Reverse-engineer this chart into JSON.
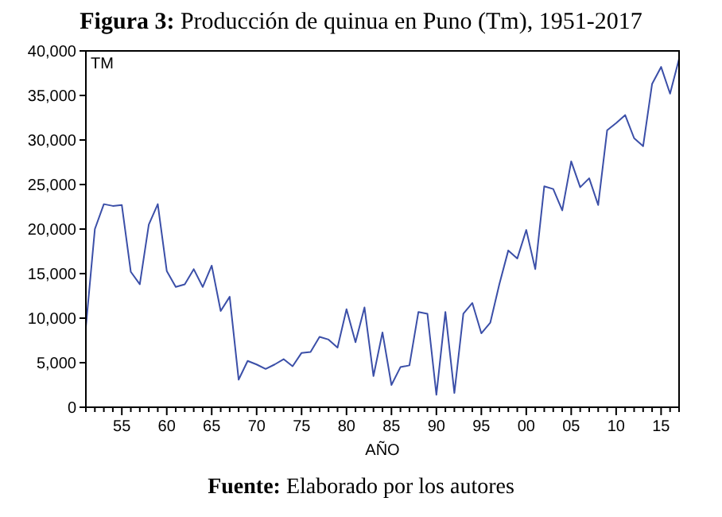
{
  "chart_data": {
    "type": "line",
    "title": "Figura 3: Producción de quinua en Puno (Tm), 1951-2017",
    "xlabel": "AÑO",
    "ylabel": "TM",
    "annotations": [
      "Fuente: Elaborado por los autores"
    ],
    "x": [
      1951,
      1952,
      1953,
      1954,
      1955,
      1956,
      1957,
      1958,
      1959,
      1960,
      1961,
      1962,
      1963,
      1964,
      1965,
      1966,
      1967,
      1968,
      1969,
      1970,
      1971,
      1972,
      1973,
      1974,
      1975,
      1976,
      1977,
      1978,
      1979,
      1980,
      1981,
      1982,
      1983,
      1984,
      1985,
      1986,
      1987,
      1988,
      1989,
      1990,
      1991,
      1992,
      1993,
      1994,
      1995,
      1996,
      1997,
      1998,
      1999,
      2000,
      2001,
      2002,
      2003,
      2004,
      2005,
      2006,
      2007,
      2008,
      2009,
      2010,
      2011,
      2012,
      2013,
      2014,
      2015,
      2016,
      2017
    ],
    "series": [
      {
        "color": "#3b4fa8",
        "values": [
          9000,
          20000,
          22800,
          22600,
          22700,
          15200,
          13800,
          20500,
          22800,
          15300,
          13500,
          13800,
          15500,
          13500,
          15900,
          10800,
          12400,
          3100,
          5200,
          4800,
          4300,
          4800,
          5400,
          4600,
          6100,
          6200,
          7900,
          7600,
          6700,
          11000,
          7300,
          11200,
          3500,
          8400,
          2500,
          4500,
          4700,
          10700,
          10500,
          1400,
          10700,
          1600,
          10500,
          11700,
          8300,
          9500,
          13800,
          17600,
          16700,
          19900,
          15500,
          24800,
          24500,
          22100,
          27600,
          24700,
          25700,
          22700,
          31100,
          31900,
          32800,
          30200,
          29300,
          36300,
          38200,
          35200,
          39100
        ]
      }
    ],
    "xlim": [
      1951,
      2017
    ],
    "ylim": [
      0,
      40000
    ],
    "xticks": [
      {
        "value": 1951,
        "label": null
      },
      {
        "value": 1952,
        "label": null
      },
      {
        "value": 1953,
        "label": null
      },
      {
        "value": 1954,
        "label": null
      },
      {
        "value": 1955,
        "label": "55"
      },
      {
        "value": 1956,
        "label": null
      },
      {
        "value": 1957,
        "label": null
      },
      {
        "value": 1958,
        "label": null
      },
      {
        "value": 1959,
        "label": null
      },
      {
        "value": 1960,
        "label": "60"
      },
      {
        "value": 1961,
        "label": null
      },
      {
        "value": 1962,
        "label": null
      },
      {
        "value": 1963,
        "label": null
      },
      {
        "value": 1964,
        "label": null
      },
      {
        "value": 1965,
        "label": "65"
      },
      {
        "value": 1966,
        "label": null
      },
      {
        "value": 1967,
        "label": null
      },
      {
        "value": 1968,
        "label": null
      },
      {
        "value": 1969,
        "label": null
      },
      {
        "value": 1970,
        "label": "70"
      },
      {
        "value": 1971,
        "label": null
      },
      {
        "value": 1972,
        "label": null
      },
      {
        "value": 1973,
        "label": null
      },
      {
        "value": 1974,
        "label": null
      },
      {
        "value": 1975,
        "label": "75"
      },
      {
        "value": 1976,
        "label": null
      },
      {
        "value": 1977,
        "label": null
      },
      {
        "value": 1978,
        "label": null
      },
      {
        "value": 1979,
        "label": null
      },
      {
        "value": 1980,
        "label": "80"
      },
      {
        "value": 1981,
        "label": null
      },
      {
        "value": 1982,
        "label": null
      },
      {
        "value": 1983,
        "label": null
      },
      {
        "value": 1984,
        "label": null
      },
      {
        "value": 1985,
        "label": "85"
      },
      {
        "value": 1986,
        "label": null
      },
      {
        "value": 1987,
        "label": null
      },
      {
        "value": 1988,
        "label": null
      },
      {
        "value": 1989,
        "label": null
      },
      {
        "value": 1990,
        "label": "90"
      },
      {
        "value": 1991,
        "label": null
      },
      {
        "value": 1992,
        "label": null
      },
      {
        "value": 1993,
        "label": null
      },
      {
        "value": 1994,
        "label": null
      },
      {
        "value": 1995,
        "label": "95"
      },
      {
        "value": 1996,
        "label": null
      },
      {
        "value": 1997,
        "label": null
      },
      {
        "value": 1998,
        "label": null
      },
      {
        "value": 1999,
        "label": null
      },
      {
        "value": 2000,
        "label": "00"
      },
      {
        "value": 2001,
        "label": null
      },
      {
        "value": 2002,
        "label": null
      },
      {
        "value": 2003,
        "label": null
      },
      {
        "value": 2004,
        "label": null
      },
      {
        "value": 2005,
        "label": "05"
      },
      {
        "value": 2006,
        "label": null
      },
      {
        "value": 2007,
        "label": null
      },
      {
        "value": 2008,
        "label": null
      },
      {
        "value": 2009,
        "label": null
      },
      {
        "value": 2010,
        "label": "10"
      },
      {
        "value": 2011,
        "label": null
      },
      {
        "value": 2012,
        "label": null
      },
      {
        "value": 2013,
        "label": null
      },
      {
        "value": 2014,
        "label": null
      },
      {
        "value": 2015,
        "label": "15"
      },
      {
        "value": 2016,
        "label": null
      },
      {
        "value": 2017,
        "label": null
      }
    ],
    "yticks": [
      {
        "value": 0,
        "label": "0"
      },
      {
        "value": 5000,
        "label": "5,000"
      },
      {
        "value": 10000,
        "label": "10,000"
      },
      {
        "value": 15000,
        "label": "15,000"
      },
      {
        "value": 20000,
        "label": "20,000"
      },
      {
        "value": 25000,
        "label": "25,000"
      },
      {
        "value": 30000,
        "label": "30,000"
      },
      {
        "value": 35000,
        "label": "35,000"
      },
      {
        "value": 40000,
        "label": "40,000"
      }
    ],
    "marker": "none",
    "line_style": "solid"
  }
}
